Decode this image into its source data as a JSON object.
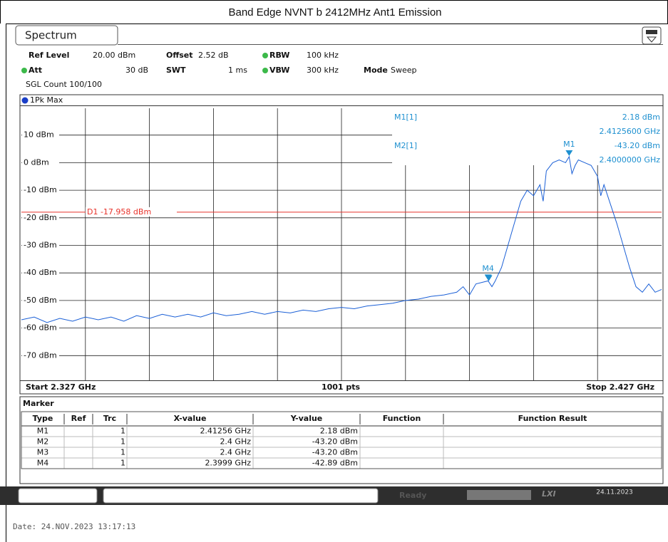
{
  "title": "Band Edge NVNT b 2412MHz Ant1 Emission",
  "tab": "Spectrum",
  "settings": [
    {
      "label": "Ref Level",
      "value": "20.00 dBm"
    },
    {
      "label": "Offset",
      "value": "2.52 dB"
    },
    {
      "label": "RBW",
      "value": "100 kHz"
    },
    {
      "label": "Att",
      "value": "30 dB"
    },
    {
      "label": "SWT",
      "value": "1 ms"
    },
    {
      "label": "VBW",
      "value": "300 kHz"
    },
    {
      "label": "Mode",
      "value": "Sweep"
    }
  ],
  "sgl_count": "SGL Count 100/100",
  "chart_data": {
    "type": "line",
    "xlim": [
      2.327,
      2.427
    ],
    "ylim": [
      -80,
      20
    ],
    "yticks": [
      {
        "value": 10,
        "label": "10 dBm"
      },
      {
        "value": 0,
        "label": "0 dBm"
      },
      {
        "value": -10,
        "label": "-10 dBm"
      },
      {
        "value": -20,
        "label": "-20 dBm"
      },
      {
        "value": -30,
        "label": "-30 dBm"
      },
      {
        "value": -40,
        "label": "-40 dBm"
      },
      {
        "value": -50,
        "label": "-50 dBm"
      },
      {
        "value": -60,
        "label": "-60 dBm"
      },
      {
        "value": -70,
        "label": "-70 dBm"
      }
    ],
    "grid": true,
    "x": [
      2.327,
      2.329,
      2.331,
      2.333,
      2.335,
      2.337,
      2.339,
      2.341,
      2.343,
      2.345,
      2.347,
      2.349,
      2.351,
      2.353,
      2.355,
      2.357,
      2.359,
      2.361,
      2.363,
      2.365,
      2.367,
      2.369,
      2.371,
      2.373,
      2.375,
      2.377,
      2.379,
      2.381,
      2.383,
      2.385,
      2.387,
      2.389,
      2.391,
      2.393,
      2.395,
      2.396,
      2.397,
      2.398,
      2.3999,
      2.4005,
      2.401,
      2.402,
      2.403,
      2.404,
      2.405,
      2.406,
      2.407,
      2.408,
      2.4085,
      2.409,
      2.41,
      2.411,
      2.412,
      2.41256,
      2.413,
      2.4135,
      2.414,
      2.415,
      2.416,
      2.417,
      2.4175,
      2.418,
      2.419,
      2.42,
      2.421,
      2.422,
      2.423,
      2.424,
      2.425,
      2.426,
      2.427
    ],
    "series": [
      {
        "name": "1Pk Max",
        "color": "#1a5fd6",
        "values": [
          -57,
          -56,
          -58,
          -56.5,
          -57.5,
          -56,
          -57,
          -56,
          -57.5,
          -55.5,
          -56.5,
          -55,
          -56,
          -55,
          -56,
          -54.5,
          -55.5,
          -55,
          -54,
          -55,
          -54,
          -54.5,
          -53.5,
          -54,
          -53,
          -52.5,
          -53,
          -52,
          -51.5,
          -51,
          -50,
          -49.5,
          -48.5,
          -48,
          -47,
          -45,
          -48,
          -44,
          -42.89,
          -45,
          -43,
          -38,
          -30,
          -22,
          -14,
          -10,
          -12,
          -8,
          -14,
          -3,
          0,
          1,
          0,
          2.18,
          -4,
          -1,
          1,
          0,
          -1,
          -5,
          -12,
          -8,
          -15,
          -22,
          -30,
          -38,
          -45,
          -47,
          -44,
          -47,
          -46
        ]
      }
    ],
    "display_line": {
      "value": -17.958,
      "label": "D1 -17.958 dBm",
      "color": "#e8322a"
    },
    "markers": [
      {
        "name": "M1",
        "x": 2.41256,
        "y": 2.18,
        "label_shown": true
      },
      {
        "name": "M2",
        "x": 2.4,
        "y": -43.2,
        "label_shown": false
      },
      {
        "name": "M3",
        "x": 2.4,
        "y": -43.2,
        "label_shown": false
      },
      {
        "name": "M4",
        "x": 2.3999,
        "y": -42.89,
        "label_shown": true
      }
    ],
    "marker_color": "#1e90d0",
    "readout": [
      {
        "name": "M1[1]",
        "lines": [
          "2.18 dBm",
          "2.4125600 GHz"
        ]
      },
      {
        "name": "M2[1]",
        "lines": [
          "-43.20 dBm",
          "2.4000000 GHz"
        ]
      }
    ],
    "start_label": "Start 2.327 GHz",
    "points_label": "1001 pts",
    "stop_label": "Stop 2.427 GHz"
  },
  "marker_table": {
    "title": "Marker",
    "header": [
      "Type",
      "Ref",
      "Trc",
      "X-value",
      "Y-value",
      "Function",
      "Function Result"
    ],
    "rows": [
      {
        "type": "M1",
        "trc": "1",
        "x": "2.41256 GHz",
        "y": "2.18 dBm"
      },
      {
        "type": "M2",
        "trc": "1",
        "x": "2.4 GHz",
        "y": "-43.20 dBm"
      },
      {
        "type": "M3",
        "trc": "1",
        "x": "2.4 GHz",
        "y": "-43.20 dBm"
      },
      {
        "type": "M4",
        "trc": "1",
        "x": "2.3999 GHz",
        "y": "-42.89 dBm"
      }
    ]
  },
  "status": {
    "state": "Ready",
    "date": "24.11.2023"
  },
  "footer_date": "Date: 24.NOV.2023  13:17:13"
}
